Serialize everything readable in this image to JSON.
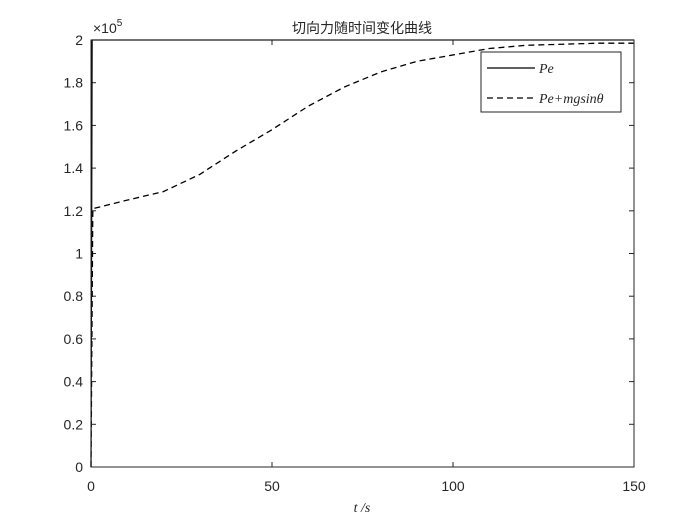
{
  "chart_data": {
    "type": "line",
    "title": "切向力随时间变化曲线",
    "xlabel": "t /s",
    "y_exponent": {
      "base": "×10",
      "power": "5"
    },
    "xlim": [
      0,
      150
    ],
    "xticks": [
      0,
      50,
      100,
      150
    ],
    "ylim": [
      0,
      2
    ],
    "yticks": [
      0,
      0.2,
      0.4,
      0.6,
      0.8,
      1,
      1.2,
      1.4,
      1.6,
      1.8,
      2
    ],
    "legend": "upper right",
    "series": [
      {
        "name": "Pe",
        "color": "#000000",
        "style": "solid",
        "x": [
          0,
          0.3,
          150
        ],
        "values": [
          0,
          2,
          2
        ]
      },
      {
        "name": "Pe+mgsinθ",
        "color": "#000000",
        "style": "dashed",
        "x": [
          0,
          0.5,
          10,
          20,
          30,
          40,
          50,
          60,
          70,
          80,
          90,
          100,
          110,
          120,
          130,
          140,
          150
        ],
        "values": [
          0,
          1.21,
          1.25,
          1.29,
          1.37,
          1.48,
          1.58,
          1.69,
          1.78,
          1.85,
          1.9,
          1.93,
          1.96,
          1.975,
          1.98,
          1.985,
          1.985
        ]
      }
    ]
  }
}
